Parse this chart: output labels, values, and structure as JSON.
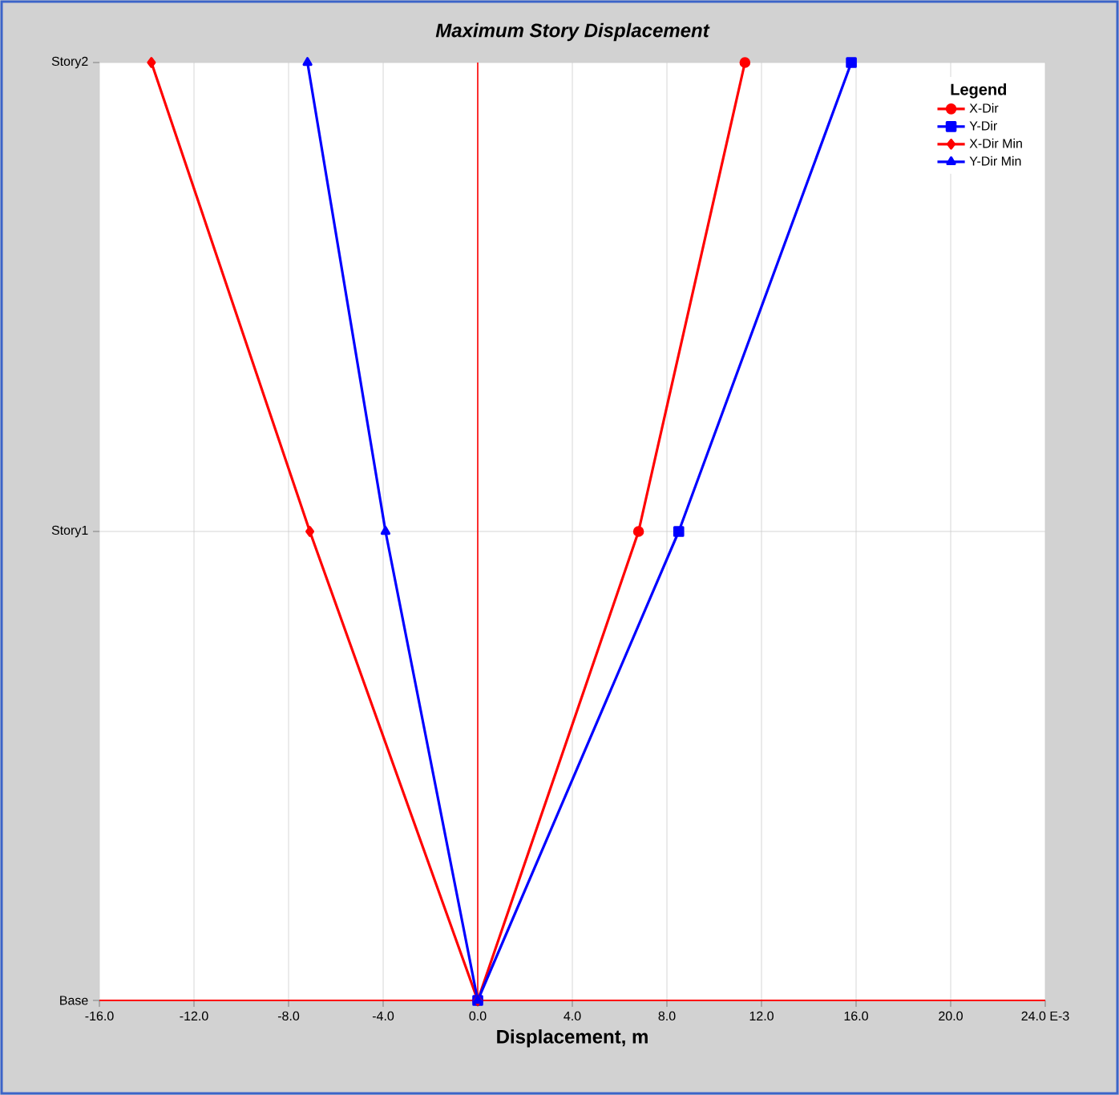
{
  "chart_data": {
    "type": "line",
    "orientation": "horizontal",
    "title": "Maximum Story Displacement",
    "xlabel": "Displacement, m",
    "categories": [
      "Story2",
      "Story1",
      "Base"
    ],
    "xlim": [
      -16,
      24
    ],
    "xticks": [
      {
        "value": -16,
        "label": "-16.0"
      },
      {
        "value": -12,
        "label": "-12.0"
      },
      {
        "value": -8,
        "label": "-8.0"
      },
      {
        "value": -4,
        "label": "-4.0"
      },
      {
        "value": 0,
        "label": "0.0"
      },
      {
        "value": 4,
        "label": "4.0"
      },
      {
        "value": 8,
        "label": "8.0"
      },
      {
        "value": 12,
        "label": "12.0"
      },
      {
        "value": 16,
        "label": "16.0"
      },
      {
        "value": 20,
        "label": "20.0"
      },
      {
        "value": 24,
        "label": "24.0 E-3"
      }
    ],
    "grid": true,
    "legend": "top right",
    "legend_title": "Legend",
    "line_style": "solid",
    "ref_lines": [
      {
        "axis": "x",
        "value": 0,
        "color": "#ff0000"
      },
      {
        "axis": "y",
        "value": "Base",
        "color": "#ff0000"
      }
    ],
    "series": [
      {
        "name": "X-Dir",
        "color": "#ff0000",
        "marker": "circle",
        "values": [
          11.3,
          6.8,
          0
        ]
      },
      {
        "name": "Y-Dir",
        "color": "#0000ff",
        "marker": "square",
        "values": [
          15.8,
          8.5,
          0
        ]
      },
      {
        "name": "X-Dir Min",
        "color": "#ff0000",
        "marker": "diamond",
        "values": [
          -13.8,
          -7.1,
          0
        ]
      },
      {
        "name": "Y-Dir Min",
        "color": "#0000ff",
        "marker": "triangle",
        "values": [
          -7.2,
          -3.9,
          0
        ]
      }
    ]
  }
}
